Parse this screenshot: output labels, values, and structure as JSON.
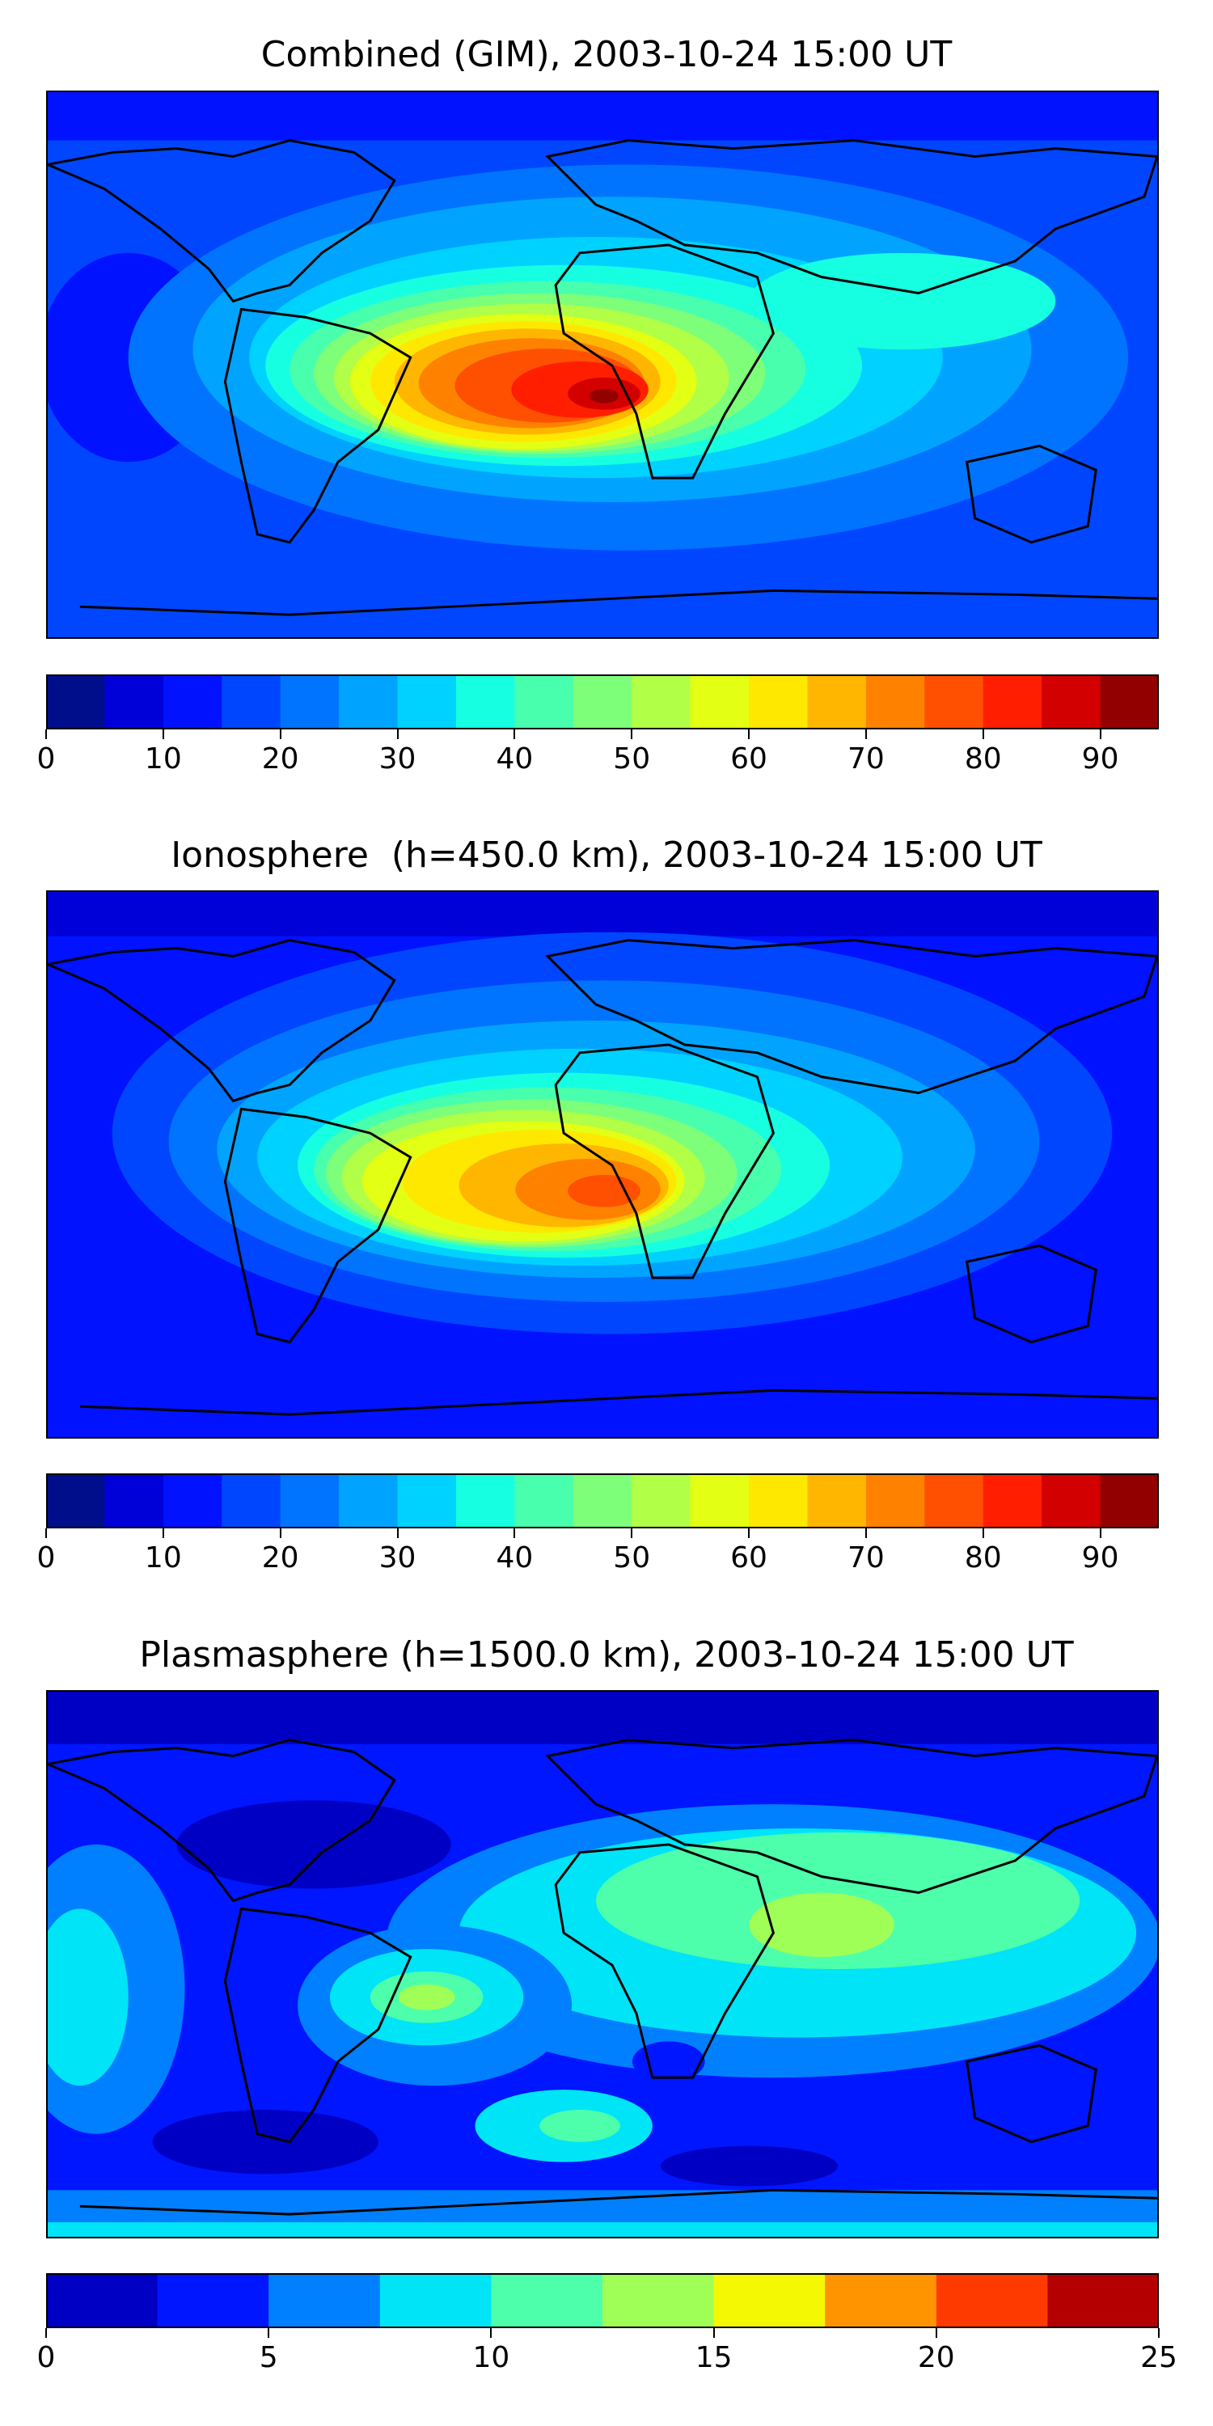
{
  "panels": [
    {
      "title": "Combined (GIM), 2003-10-24 15:00 UT",
      "colorbar": {
        "min": 0,
        "max": 95,
        "step": 5,
        "tick_values": [
          0,
          10,
          20,
          30,
          40,
          50,
          60,
          70,
          80,
          90
        ],
        "tick_labels": [
          "0",
          "10",
          "20",
          "30",
          "40",
          "50",
          "60",
          "70",
          "80",
          "90"
        ],
        "colors": [
          "#000e8c",
          "#0000d8",
          "#0012ff",
          "#0046ff",
          "#0074ff",
          "#00a4ff",
          "#00d2ff",
          "#16ffe1",
          "#48ffae",
          "#7dff7a",
          "#b1ff46",
          "#e3ff14",
          "#ffe800",
          "#ffb600",
          "#ff8100",
          "#ff4f00",
          "#ff1e00",
          "#d30000",
          "#930000"
        ]
      },
      "map_description": "TEC filled contours with equatorial anomaly maximum over South America and Africa"
    },
    {
      "title": "Ionosphere  (h=450.0 km), 2003-10-24 15:00 UT",
      "colorbar": {
        "min": 0,
        "max": 95,
        "step": 5,
        "tick_values": [
          0,
          10,
          20,
          30,
          40,
          50,
          60,
          70,
          80,
          90
        ],
        "tick_labels": [
          "0",
          "10",
          "20",
          "30",
          "40",
          "50",
          "60",
          "70",
          "80",
          "90"
        ],
        "colors": [
          "#000e8c",
          "#0000d8",
          "#0012ff",
          "#0046ff",
          "#0074ff",
          "#00a4ff",
          "#00d2ff",
          "#16ffe1",
          "#48ffae",
          "#7dff7a",
          "#b1ff46",
          "#e3ff14",
          "#ffe800",
          "#ffb600",
          "#ff8100",
          "#ff4f00",
          "#ff1e00",
          "#d30000",
          "#930000"
        ]
      },
      "map_description": "Ionospheric TEC with maximum over south Atlantic / Africa"
    },
    {
      "title": "Plasmasphere (h=1500.0 km), 2003-10-24 15:00 UT",
      "colorbar": {
        "min": 0,
        "max": 25,
        "step": 2.5,
        "tick_values": [
          0,
          5,
          10,
          15,
          20,
          25
        ],
        "tick_labels": [
          "0",
          "5",
          "10",
          "15",
          "20",
          "25"
        ],
        "colors": [
          "#0000c4",
          "#0016ff",
          "#0080ff",
          "#00e4f8",
          "#4dffaa",
          "#a0ff56",
          "#f4f802",
          "#ff9400",
          "#ff3a00",
          "#b40000"
        ]
      },
      "map_description": "Plasmaspheric TEC, broader and weaker"
    }
  ]
}
